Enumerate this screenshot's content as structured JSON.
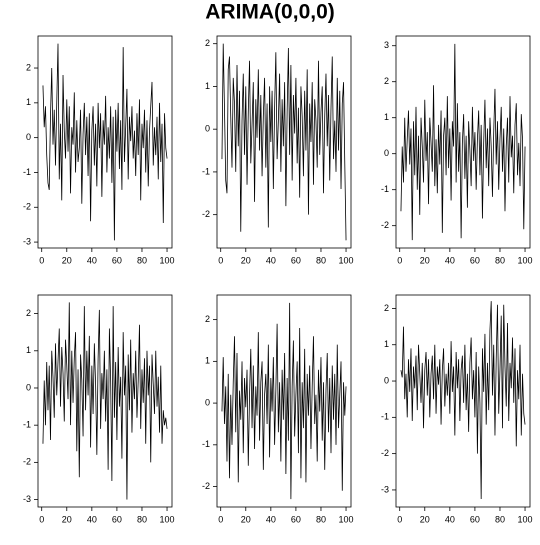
{
  "title": "ARIMA(0,0,0)",
  "chart_data": [
    {
      "type": "line",
      "color": "#000000",
      "xlim": [
        -2.96,
        103.96
      ],
      "xticks": [
        0,
        20,
        40,
        60,
        80,
        100
      ],
      "ylim": [
        -3.17,
        2.92
      ],
      "yticks": [
        -3,
        -2,
        -1,
        0,
        1,
        2
      ],
      "x": [
        1,
        2,
        3,
        4,
        5,
        6,
        7,
        8,
        9,
        10,
        11,
        12,
        13,
        14,
        15,
        16,
        17,
        18,
        19,
        20,
        21,
        22,
        23,
        24,
        25,
        26,
        27,
        28,
        29,
        30,
        31,
        32,
        33,
        34,
        35,
        36,
        37,
        38,
        39,
        40,
        41,
        42,
        43,
        44,
        45,
        46,
        47,
        48,
        49,
        50,
        51,
        52,
        53,
        54,
        55,
        56,
        57,
        58,
        59,
        60,
        61,
        62,
        63,
        64,
        65,
        66,
        67,
        68,
        69,
        70,
        71,
        72,
        73,
        74,
        75,
        76,
        77,
        78,
        79,
        80,
        81,
        82,
        83,
        84,
        85,
        86,
        87,
        88,
        89,
        90,
        91,
        92,
        93,
        94,
        95,
        96,
        97,
        98,
        99,
        100
      ],
      "values": [
        1.5,
        0.3,
        0.9,
        -0.5,
        -1.3,
        -1.5,
        0.6,
        2.0,
        -0.2,
        0.8,
        -0.8,
        1.0,
        2.7,
        -1.2,
        0.4,
        -1.8,
        1.8,
        0.2,
        -0.6,
        1.1,
        -0.4,
        0.9,
        -1.6,
        0.3,
        -0.2,
        1.3,
        -1.0,
        0.5,
        -0.7,
        -0.3,
        0.8,
        -1.9,
        0.1,
        1.0,
        -0.5,
        0.6,
        -1.1,
        0.7,
        -2.4,
        0.2,
        0.9,
        -0.8,
        0.4,
        -1.4,
        1.0,
        -0.3,
        0.7,
        -1.7,
        0.5,
        -0.2,
        1.2,
        -1.0,
        0.3,
        -0.6,
        0.9,
        -1.3,
        0.6,
        -2.95,
        0.8,
        -0.4,
        1.0,
        -0.9,
        0.5,
        -1.5,
        2.6,
        -0.7,
        0.3,
        1.4,
        -1.2,
        0.6,
        -0.1,
        0.9,
        -0.6,
        0.2,
        -1.1,
        0.7,
        -0.5,
        1.1,
        -1.8,
        0.4,
        -0.3,
        0.8,
        -1.0,
        0.5,
        -1.4,
        0.2,
        0.9,
        1.6,
        -0.8,
        0.3,
        -0.5,
        0.6,
        -1.2,
        1.0,
        -0.7,
        0.4,
        -2.45,
        0.7,
        -0.3,
        -0.6
      ]
    },
    {
      "type": "line",
      "color": "#000000",
      "xlim": [
        -2.96,
        103.96
      ],
      "xticks": [
        0,
        20,
        40,
        60,
        80,
        100
      ],
      "ylim": [
        -2.78,
        2.18
      ],
      "yticks": [
        -2,
        -1,
        0,
        1,
        2
      ],
      "x": [
        1,
        2,
        3,
        4,
        5,
        6,
        7,
        8,
        9,
        10,
        11,
        12,
        13,
        14,
        15,
        16,
        17,
        18,
        19,
        20,
        21,
        22,
        23,
        24,
        25,
        26,
        27,
        28,
        29,
        30,
        31,
        32,
        33,
        34,
        35,
        36,
        37,
        38,
        39,
        40,
        41,
        42,
        43,
        44,
        45,
        46,
        47,
        48,
        49,
        50,
        51,
        52,
        53,
        54,
        55,
        56,
        57,
        58,
        59,
        60,
        61,
        62,
        63,
        64,
        65,
        66,
        67,
        68,
        69,
        70,
        71,
        72,
        73,
        74,
        75,
        76,
        77,
        78,
        79,
        80,
        81,
        82,
        83,
        84,
        85,
        86,
        87,
        88,
        89,
        90,
        91,
        92,
        93,
        94,
        95,
        96,
        97,
        98,
        99,
        100
      ],
      "values": [
        -0.7,
        2.0,
        0.5,
        -1.2,
        -1.5,
        1.4,
        1.7,
        0.3,
        -0.9,
        1.2,
        0.6,
        -1.0,
        1.5,
        -0.4,
        0.9,
        -2.4,
        0.2,
        1.3,
        -0.6,
        1.0,
        -1.3,
        0.4,
        1.6,
        -0.8,
        0.1,
        1.1,
        -1.7,
        0.7,
        -0.2,
        1.4,
        -0.5,
        0.8,
        -1.1,
        0.3,
        1.2,
        -0.9,
        0.6,
        -2.3,
        1.0,
        -0.3,
        0.9,
        -1.4,
        0.5,
        1.8,
        -0.7,
        0.2,
        1.3,
        -1.0,
        0.7,
        -0.4,
        1.1,
        -1.8,
        0.4,
        1.9,
        -0.6,
        1.5,
        -1.2,
        0.8,
        -0.1,
        1.2,
        -0.8,
        0.5,
        -1.6,
        1.0,
        0.3,
        -1.1,
        0.9,
        -0.5,
        1.4,
        -2.0,
        0.6,
        -0.3,
        1.1,
        -1.3,
        0.7,
        0.2,
        -0.9,
        1.6,
        -0.6,
        0.4,
        1.0,
        -1.5,
        0.3,
        1.3,
        -0.4,
        0.8,
        -1.2,
        0.5,
        1.7,
        -0.7,
        0.2,
        -1.0,
        1.2,
        -0.5,
        0.9,
        -1.4,
        0.6,
        1.1,
        -0.8,
        -2.6
      ]
    },
    {
      "type": "line",
      "color": "#000000",
      "xlim": [
        -2.96,
        103.96
      ],
      "xticks": [
        0,
        20,
        40,
        60,
        80,
        100
      ],
      "ylim": [
        -2.62,
        3.27
      ],
      "yticks": [
        -2,
        -1,
        0,
        1,
        2,
        3
      ],
      "x": [
        1,
        2,
        3,
        4,
        5,
        6,
        7,
        8,
        9,
        10,
        11,
        12,
        13,
        14,
        15,
        16,
        17,
        18,
        19,
        20,
        21,
        22,
        23,
        24,
        25,
        26,
        27,
        28,
        29,
        30,
        31,
        32,
        33,
        34,
        35,
        36,
        37,
        38,
        39,
        40,
        41,
        42,
        43,
        44,
        45,
        46,
        47,
        48,
        49,
        50,
        51,
        52,
        53,
        54,
        55,
        56,
        57,
        58,
        59,
        60,
        61,
        62,
        63,
        64,
        65,
        66,
        67,
        68,
        69,
        70,
        71,
        72,
        73,
        74,
        75,
        76,
        77,
        78,
        79,
        80,
        81,
        82,
        83,
        84,
        85,
        86,
        87,
        88,
        89,
        90,
        91,
        92,
        93,
        94,
        95,
        96,
        97,
        98,
        99,
        100
      ],
      "values": [
        -1.6,
        0.2,
        -0.8,
        1.0,
        -0.5,
        0.4,
        1.2,
        -0.3,
        0.7,
        -2.4,
        0.9,
        -0.6,
        1.3,
        -1.0,
        0.5,
        -1.7,
        1.0,
        0.2,
        -0.8,
        1.5,
        -0.2,
        0.6,
        -1.4,
        1.0,
        0.3,
        -0.5,
        1.9,
        -0.9,
        0.4,
        -1.1,
        0.8,
        -0.3,
        1.2,
        -2.2,
        0.5,
        1.0,
        -0.6,
        1.6,
        -0.4,
        0.7,
        -1.3,
        0.9,
        0.2,
        3.05,
        -0.8,
        1.4,
        -0.5,
        0.6,
        -2.35,
        0.3,
        1.1,
        -0.7,
        0.5,
        -1.5,
        0.9,
        0.1,
        -0.9,
        1.3,
        -0.2,
        0.6,
        -1.0,
        0.4,
        1.2,
        -0.6,
        0.8,
        -1.8,
        0.3,
        1.5,
        -0.4,
        0.7,
        -0.9,
        1.0,
        0.2,
        -1.2,
        0.6,
        1.8,
        -0.3,
        0.9,
        -1.0,
        0.4,
        1.3,
        -0.5,
        0.7,
        -1.6,
        0.2,
        1.0,
        -0.8,
        1.6,
        -0.1,
        0.5,
        -1.1,
        0.8,
        1.4,
        -0.6,
        0.3,
        -0.9,
        1.1,
        0.4,
        -2.1,
        0.2
      ]
    },
    {
      "type": "line",
      "color": "#000000",
      "xlim": [
        -2.96,
        103.96
      ],
      "xticks": [
        0,
        20,
        40,
        60,
        80,
        100
      ],
      "ylim": [
        -3.2,
        2.5
      ],
      "yticks": [
        -3,
        -2,
        -1,
        0,
        1,
        2
      ],
      "x": [
        1,
        2,
        3,
        4,
        5,
        6,
        7,
        8,
        9,
        10,
        11,
        12,
        13,
        14,
        15,
        16,
        17,
        18,
        19,
        20,
        21,
        22,
        23,
        24,
        25,
        26,
        27,
        28,
        29,
        30,
        31,
        32,
        33,
        34,
        35,
        36,
        37,
        38,
        39,
        40,
        41,
        42,
        43,
        44,
        45,
        46,
        47,
        48,
        49,
        50,
        51,
        52,
        53,
        54,
        55,
        56,
        57,
        58,
        59,
        60,
        61,
        62,
        63,
        64,
        65,
        66,
        67,
        68,
        69,
        70,
        71,
        72,
        73,
        74,
        75,
        76,
        77,
        78,
        79,
        80,
        81,
        82,
        83,
        84,
        85,
        86,
        87,
        88,
        89,
        90,
        91,
        92,
        93,
        94,
        95,
        96,
        97,
        98,
        99,
        100
      ],
      "values": [
        -1.5,
        0.2,
        -1.0,
        0.7,
        -0.6,
        0.6,
        -1.4,
        1.0,
        0.3,
        -0.8,
        1.2,
        -0.2,
        0.7,
        1.6,
        -0.5,
        1.1,
        0.4,
        -0.9,
        1.3,
        0.6,
        -0.3,
        2.3,
        -1.0,
        1.0,
        -0.4,
        0.8,
        1.5,
        -1.7,
        0.5,
        -2.4,
        0.9,
        0.2,
        -1.3,
        2.2,
        -0.6,
        1.0,
        -0.2,
        1.4,
        -1.6,
        0.6,
        -0.7,
        1.2,
        0.1,
        -1.8,
        0.8,
        2.1,
        -1.1,
        0.4,
        -0.3,
        1.0,
        -0.9,
        0.5,
        -2.2,
        1.6,
        0.2,
        -2.5,
        2.2,
        -0.8,
        0.7,
        -1.4,
        1.1,
        -0.5,
        0.3,
        -1.9,
        1.5,
        -0.2,
        0.6,
        -3.0,
        0.9,
        -0.6,
        1.3,
        -1.2,
        0.4,
        -0.3,
        1.0,
        -0.8,
        0.2,
        1.7,
        -1.1,
        0.5,
        -0.4,
        0.8,
        -1.5,
        1.0,
        -0.2,
        0.6,
        -2.0,
        0.9,
        0.1,
        -0.7,
        1.0,
        -0.5,
        0.3,
        -1.2,
        0.6,
        -1.5,
        -0.6,
        -1.0,
        -0.8,
        -1.1
      ]
    },
    {
      "type": "line",
      "color": "#000000",
      "xlim": [
        -2.96,
        103.96
      ],
      "xticks": [
        0,
        20,
        40,
        60,
        80,
        100
      ],
      "ylim": [
        -2.49,
        2.59
      ],
      "yticks": [
        -2,
        -1,
        0,
        1,
        2
      ],
      "x": [
        1,
        2,
        3,
        4,
        5,
        6,
        7,
        8,
        9,
        10,
        11,
        12,
        13,
        14,
        15,
        16,
        17,
        18,
        19,
        20,
        21,
        22,
        23,
        24,
        25,
        26,
        27,
        28,
        29,
        30,
        31,
        32,
        33,
        34,
        35,
        36,
        37,
        38,
        39,
        40,
        41,
        42,
        43,
        44,
        45,
        46,
        47,
        48,
        49,
        50,
        51,
        52,
        53,
        54,
        55,
        56,
        57,
        58,
        59,
        60,
        61,
        62,
        63,
        64,
        65,
        66,
        67,
        68,
        69,
        70,
        71,
        72,
        73,
        74,
        75,
        76,
        77,
        78,
        79,
        80,
        81,
        82,
        83,
        84,
        85,
        86,
        87,
        88,
        89,
        90,
        91,
        92,
        93,
        94,
        95,
        96,
        97,
        98,
        99,
        100
      ],
      "values": [
        -0.2,
        1.1,
        -0.5,
        0.4,
        -1.4,
        0.7,
        -1.8,
        0.2,
        -1.0,
        0.5,
        1.6,
        -0.7,
        1.2,
        -1.9,
        0.3,
        -0.4,
        1.0,
        -1.2,
        0.6,
        -0.1,
        0.8,
        -1.5,
        0.2,
        1.3,
        -0.6,
        0.9,
        -1.1,
        0.4,
        -0.3,
        1.7,
        -0.9,
        0.5,
        1.0,
        -1.6,
        0.2,
        0.7,
        -0.5,
        1.4,
        -1.3,
        0.6,
        -0.2,
        1.1,
        -1.0,
        0.3,
        1.9,
        -0.7,
        0.5,
        -1.4,
        0.8,
        -0.4,
        1.2,
        -1.7,
        0.6,
        -0.9,
        2.4,
        -2.3,
        0.4,
        1.5,
        -0.8,
        0.2,
        1.0,
        -1.2,
        1.8,
        -1.8,
        0.5,
        -0.6,
        1.3,
        -1.9,
        0.7,
        -0.3,
        0.9,
        -1.1,
        0.4,
        1.6,
        -0.5,
        0.2,
        -1.4,
        0.8,
        -0.2,
        1.1,
        -0.9,
        0.5,
        -1.6,
        0.3,
        1.2,
        -0.7,
        0.6,
        -1.2,
        0.9,
        -0.4,
        0.7,
        -1.0,
        1.4,
        -0.6,
        0.2,
        1.0,
        -2.1,
        0.5,
        -0.3,
        0.4
      ]
    },
    {
      "type": "line",
      "color": "#000000",
      "xlim": [
        -2.96,
        103.96
      ],
      "xticks": [
        0,
        20,
        40,
        60,
        80,
        100
      ],
      "ylim": [
        -3.47,
        2.37
      ],
      "yticks": [
        -3,
        -2,
        -1,
        0,
        1,
        2
      ],
      "x": [
        1,
        2,
        3,
        4,
        5,
        6,
        7,
        8,
        9,
        10,
        11,
        12,
        13,
        14,
        15,
        16,
        17,
        18,
        19,
        20,
        21,
        22,
        23,
        24,
        25,
        26,
        27,
        28,
        29,
        30,
        31,
        32,
        33,
        34,
        35,
        36,
        37,
        38,
        39,
        40,
        41,
        42,
        43,
        44,
        45,
        46,
        47,
        48,
        49,
        50,
        51,
        52,
        53,
        54,
        55,
        56,
        57,
        58,
        59,
        60,
        61,
        62,
        63,
        64,
        65,
        66,
        67,
        68,
        69,
        70,
        71,
        72,
        73,
        74,
        75,
        76,
        77,
        78,
        79,
        80,
        81,
        82,
        83,
        84,
        85,
        86,
        87,
        88,
        89,
        90,
        91,
        92,
        93,
        94,
        95,
        96,
        97,
        98,
        99,
        100
      ],
      "values": [
        0.3,
        0.1,
        1.5,
        -0.5,
        0.2,
        -1.0,
        0.6,
        -0.3,
        0.9,
        -1.1,
        0.4,
        -0.2,
        0.7,
        -0.8,
        1.0,
        0.2,
        -0.6,
        0.5,
        -1.3,
        0.3,
        0.8,
        -0.4,
        0.6,
        -1.0,
        0.2,
        0.7,
        -0.5,
        1.0,
        -0.9,
        0.4,
        -0.1,
        0.6,
        -1.2,
        0.3,
        0.9,
        -0.7,
        0.2,
        -0.4,
        0.5,
        -0.9,
        1.1,
        -0.3,
        0.4,
        -1.5,
        0.8,
        -0.2,
        0.6,
        -1.1,
        0.3,
        0.7,
        -0.6,
        1.0,
        -0.8,
        0.2,
        -1.4,
        0.5,
        1.2,
        -0.5,
        0.3,
        -1.0,
        0.8,
        -2.0,
        0.4,
        -0.6,
        -3.25,
        0.9,
        -0.3,
        1.3,
        -1.2,
        0.5,
        -0.8,
        1.4,
        2.2,
        -0.4,
        1.0,
        -1.5,
        0.6,
        2.1,
        -0.9,
        0.3,
        1.8,
        -1.3,
        2.1,
        0.4,
        -0.7,
        1.6,
        -1.1,
        0.5,
        -0.2,
        1.2,
        -0.6,
        0.9,
        -1.8,
        0.3,
        -0.5,
        1.0,
        -1.5,
        0.2,
        -0.9,
        -1.2
      ]
    }
  ]
}
